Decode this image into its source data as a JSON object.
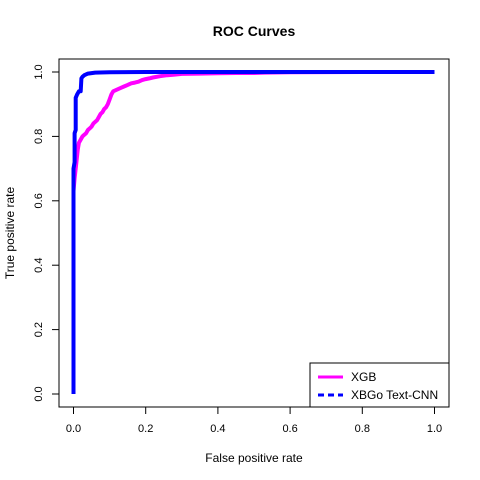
{
  "chart_data": {
    "type": "line",
    "title": "ROC Curves",
    "xlabel": "False positive rate",
    "ylabel": "True positive rate",
    "xlim": [
      0,
      1
    ],
    "ylim": [
      0,
      1
    ],
    "xticks": [
      "0.0",
      "0.2",
      "0.4",
      "0.6",
      "0.8",
      "1.0"
    ],
    "yticks": [
      "0.0",
      "0.2",
      "0.4",
      "0.6",
      "0.8",
      "1.0"
    ],
    "grid": false,
    "legend_position": "bottom-right",
    "series": [
      {
        "name": "XGB",
        "color": "#ff00ff",
        "style": "solid",
        "x": [
          0.0,
          0.0,
          0.003,
          0.006,
          0.008,
          0.01,
          0.012,
          0.015,
          0.02,
          0.025,
          0.03,
          0.035,
          0.04,
          0.045,
          0.05,
          0.055,
          0.06,
          0.065,
          0.07,
          0.075,
          0.08,
          0.085,
          0.09,
          0.095,
          0.1,
          0.105,
          0.11,
          0.12,
          0.13,
          0.14,
          0.15,
          0.16,
          0.17,
          0.18,
          0.19,
          0.2,
          0.21,
          0.22,
          0.24,
          0.26,
          0.28,
          0.3,
          0.35,
          0.4,
          0.45,
          0.5,
          0.53,
          0.6,
          0.8,
          1.0
        ],
        "y": [
          0.0,
          0.63,
          0.67,
          0.7,
          0.72,
          0.74,
          0.76,
          0.78,
          0.79,
          0.8,
          0.805,
          0.81,
          0.82,
          0.825,
          0.83,
          0.84,
          0.845,
          0.85,
          0.86,
          0.87,
          0.875,
          0.885,
          0.89,
          0.9,
          0.915,
          0.93,
          0.94,
          0.945,
          0.95,
          0.955,
          0.96,
          0.965,
          0.967,
          0.97,
          0.975,
          0.978,
          0.98,
          0.983,
          0.987,
          0.99,
          0.992,
          0.994,
          0.995,
          0.996,
          0.997,
          0.997,
          0.998,
          0.999,
          1.0,
          1.0
        ]
      },
      {
        "name": "XBGo Text-CNN",
        "color": "#0000ff",
        "style": "solid",
        "x": [
          0.0,
          0.0,
          0.003,
          0.003,
          0.006,
          0.006,
          0.01,
          0.01,
          0.015,
          0.02,
          0.022,
          0.025,
          0.03,
          0.04,
          0.06,
          0.1,
          0.2,
          0.5,
          1.0
        ],
        "y": [
          0.0,
          0.7,
          0.72,
          0.81,
          0.82,
          0.92,
          0.93,
          0.93,
          0.94,
          0.94,
          0.98,
          0.985,
          0.99,
          0.995,
          0.998,
          0.999,
          1.0,
          1.0,
          1.0
        ]
      }
    ]
  }
}
